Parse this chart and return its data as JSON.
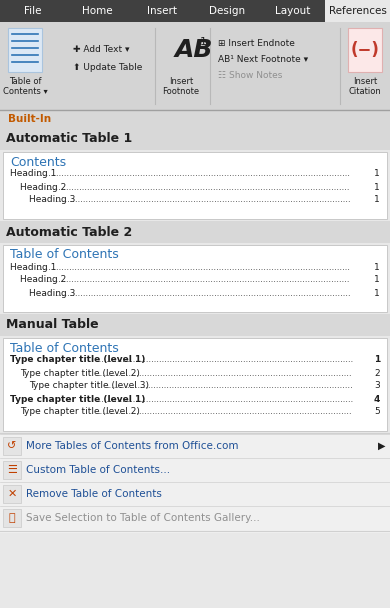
{
  "bg_color": "#e8e8e8",
  "ribbon_tab_bg": "#404040",
  "ribbon_tabs": [
    "File",
    "Home",
    "Insert",
    "Design",
    "Layout",
    "References"
  ],
  "ribbon_active_tab": "References",
  "ribbon_active_bg": "#e8e8e8",
  "ribbon_icon_bg": "#d4d4d4",
  "built_in_label": "Built-In",
  "built_in_bg": "#d8d8d8",
  "built_in_color": "#c25a00",
  "section_title_color": "#1f1f1f",
  "toc_title_color": "#2e74b5",
  "card_bg": "#ffffff",
  "card_border": "#c8c8c8",
  "menu_bg": "#f0f0f0",
  "menu_separator": "#d0d0d0",
  "sections": [
    {
      "title": "Automatic Table 1",
      "card_title": "Contents",
      "entries": [
        {
          "text": "Heading 1",
          "indent": 0,
          "page": "1",
          "bold": false
        },
        {
          "text": "Heading 2",
          "indent": 1,
          "page": "1",
          "bold": false
        },
        {
          "text": "Heading 3",
          "indent": 2,
          "page": "1",
          "bold": false
        }
      ]
    },
    {
      "title": "Automatic Table 2",
      "card_title": "Table of Contents",
      "entries": [
        {
          "text": "Heading 1",
          "indent": 0,
          "page": "1",
          "bold": false
        },
        {
          "text": "Heading 2",
          "indent": 1,
          "page": "1",
          "bold": false
        },
        {
          "text": "Heading 3",
          "indent": 2,
          "page": "1",
          "bold": false
        }
      ]
    },
    {
      "title": "Manual Table",
      "card_title": "Table of Contents",
      "entries": [
        {
          "text": "Type chapter title (level 1)",
          "indent": 0,
          "page": "1",
          "bold": true
        },
        {
          "text": "Type chapter title (level 2)",
          "indent": 1,
          "page": "2",
          "bold": false
        },
        {
          "text": "Type chapter title (level 3)",
          "indent": 2,
          "page": "3",
          "bold": false
        },
        {
          "text": "Type chapter title (level 1)",
          "indent": 0,
          "page": "4",
          "bold": true
        },
        {
          "text": "Type chapter title (level 2)",
          "indent": 1,
          "page": "5",
          "bold": false
        }
      ]
    }
  ],
  "menu_items": [
    {
      "text": "More Tables of Contents from Office.com",
      "has_arrow": true,
      "color": "#1f5096",
      "active": true
    },
    {
      "text": "Custom Table of Contents...",
      "has_arrow": false,
      "color": "#1f5096",
      "active": true
    },
    {
      "text": "Remove Table of Contents",
      "has_arrow": false,
      "color": "#1f5096",
      "active": true
    },
    {
      "text": "Save Selection to Table of Contents Gallery...",
      "has_arrow": false,
      "color": "#909090",
      "active": false
    }
  ]
}
